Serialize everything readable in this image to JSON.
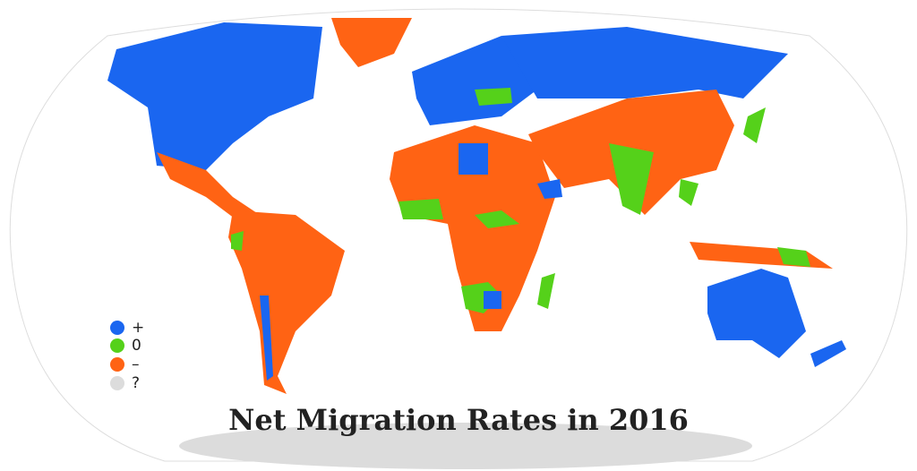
{
  "title": "Net Migration Rates in 2016",
  "legend": [
    {
      "label": "+",
      "color": "#1a66f0"
    },
    {
      "label": "0",
      "color": "#55d11a"
    },
    {
      "label": "–",
      "color": "#ff6314"
    },
    {
      "label": "?",
      "color": "#dcdcdc"
    }
  ]
}
